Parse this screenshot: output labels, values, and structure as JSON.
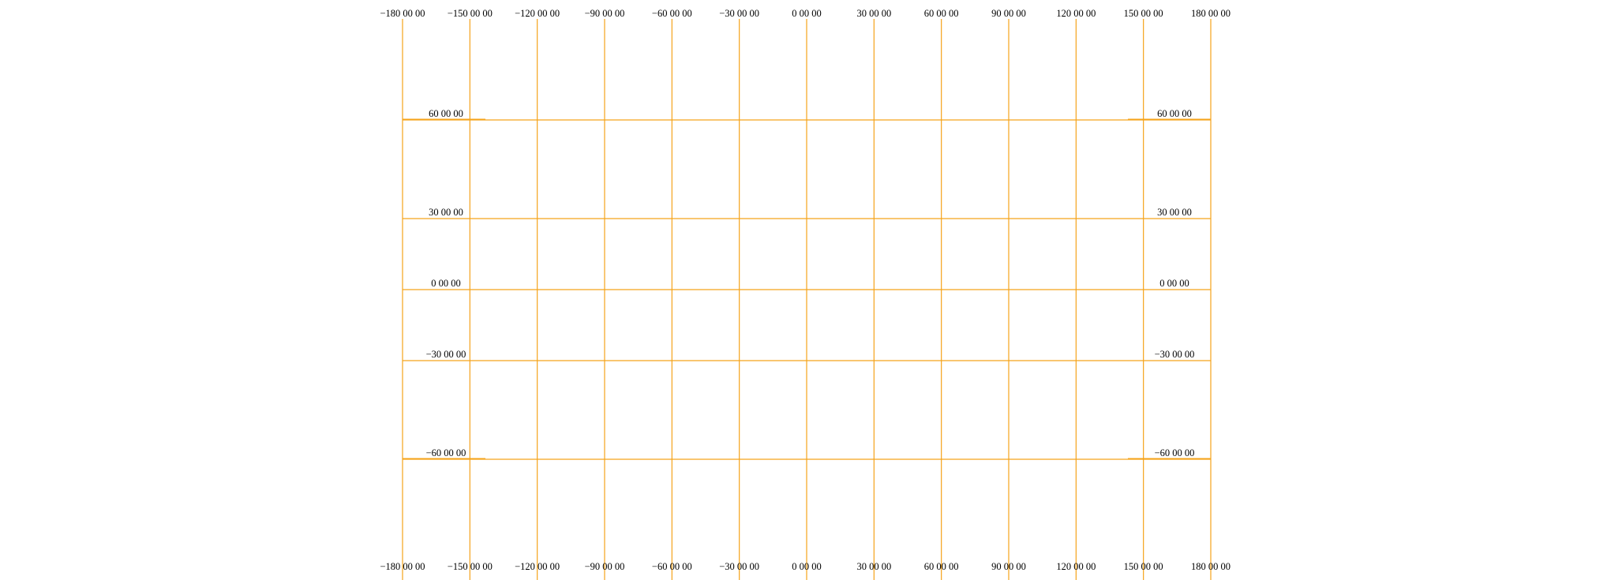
{
  "graticule": {
    "line_color": "#f5a31a",
    "label_color": "#000000",
    "meridians": [
      {
        "lon": -180,
        "label": "−180 00 00"
      },
      {
        "lon": -150,
        "label": "−150 00 00"
      },
      {
        "lon": -120,
        "label": "−120 00 00"
      },
      {
        "lon": -90,
        "label": "−90 00 00"
      },
      {
        "lon": -60,
        "label": "−60 00 00"
      },
      {
        "lon": -30,
        "label": "−30 00 00"
      },
      {
        "lon": 0,
        "label": "0 00 00"
      },
      {
        "lon": 30,
        "label": "30 00 00"
      },
      {
        "lon": 60,
        "label": "60 00 00"
      },
      {
        "lon": 90,
        "label": "90 00 00"
      },
      {
        "lon": 120,
        "label": "120 00 00"
      },
      {
        "lon": 150,
        "label": "150 00 00"
      },
      {
        "lon": 180,
        "label": "180 00 00"
      }
    ],
    "parallels": [
      {
        "lat": 60,
        "label": "60 00 00"
      },
      {
        "lat": 30,
        "label": "30 00 00"
      },
      {
        "lat": 0,
        "label": "0 00 00"
      },
      {
        "lat": -30,
        "label": "−30 00 00"
      },
      {
        "lat": -60,
        "label": "−60 00 00"
      }
    ]
  }
}
